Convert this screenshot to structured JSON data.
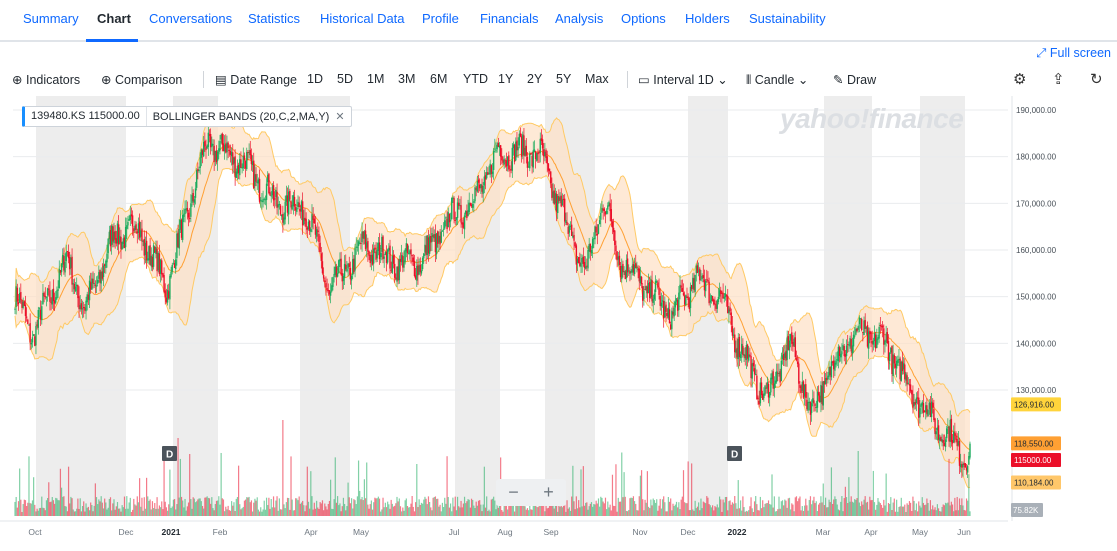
{
  "nav": {
    "tabs": [
      "Summary",
      "Chart",
      "Conversations",
      "Statistics",
      "Historical Data",
      "Profile",
      "Financials",
      "Analysis",
      "Options",
      "Holders",
      "Sustainability"
    ],
    "active": "Chart"
  },
  "fullscreen_label": "Full screen",
  "toolbar": {
    "indicators": "Indicators",
    "comparison": "Comparison",
    "date_range": "Date Range",
    "ranges": [
      "1D",
      "5D",
      "1M",
      "3M",
      "6M",
      "YTD",
      "1Y",
      "2Y",
      "5Y",
      "Max"
    ],
    "interval_label": "Interval",
    "interval_value": "1D",
    "candle_label": "Candle",
    "draw_label": "Draw"
  },
  "chips": {
    "symbol": "139480.KS",
    "price": "115000.00",
    "indicator": "BOLLINGER BANDS (20,C,2,MA,Y)"
  },
  "watermark": "yahoo!finance",
  "chart_data": {
    "type": "candlestick",
    "indicator": "Bollinger Bands",
    "y_axis": {
      "range": [
        103000,
        193000
      ],
      "ticks": [
        "190,000.00",
        "180,000.00",
        "170,000.00",
        "160,000.00",
        "150,000.00",
        "140,000.00",
        "130,000.00"
      ],
      "tick_values": [
        190000,
        180000,
        170000,
        160000,
        150000,
        140000,
        130000
      ]
    },
    "x_axis": {
      "labels": [
        "Oct",
        "Dec",
        "2021",
        "Feb",
        "Apr",
        "May",
        "Jul",
        "Aug",
        "Sep",
        "Nov",
        "Dec",
        "2022",
        "Mar",
        "Apr",
        "May",
        "Jun"
      ],
      "bold": [
        "2021",
        "2022"
      ]
    },
    "price_anchors": [
      [
        0,
        150000
      ],
      [
        15,
        142000
      ],
      [
        45,
        158000
      ],
      [
        60,
        147000
      ],
      [
        85,
        163000
      ],
      [
        105,
        165000
      ],
      [
        130,
        152000
      ],
      [
        165,
        183000
      ],
      [
        195,
        179000
      ],
      [
        225,
        170000
      ],
      [
        250,
        169000
      ],
      [
        270,
        151000
      ],
      [
        300,
        161000
      ],
      [
        330,
        157000
      ],
      [
        350,
        158000
      ],
      [
        375,
        167000
      ],
      [
        395,
        171000
      ],
      [
        415,
        181000
      ],
      [
        450,
        181000
      ],
      [
        470,
        168000
      ],
      [
        490,
        155000
      ],
      [
        505,
        171000
      ],
      [
        520,
        158000
      ],
      [
        545,
        151000
      ],
      [
        565,
        146000
      ],
      [
        585,
        154000
      ],
      [
        605,
        150000
      ],
      [
        625,
        138000
      ],
      [
        645,
        128000
      ],
      [
        665,
        140000
      ],
      [
        685,
        125000
      ],
      [
        700,
        135000
      ],
      [
        720,
        142000
      ],
      [
        745,
        141000
      ],
      [
        770,
        130000
      ],
      [
        790,
        123000
      ],
      [
        820,
        115000
      ]
    ],
    "badges": [
      {
        "label": "126,916.00",
        "value": 126916,
        "color": "#ffd43b"
      },
      {
        "label": "118,550.00",
        "value": 118550,
        "color": "#ffa033"
      },
      {
        "label": "115000.00",
        "value": 115000,
        "color": "#eb0f29"
      },
      {
        "label": "110,184.00",
        "value": 110184,
        "color": "#ffc76a"
      }
    ],
    "volume_label": "75.82K",
    "dividend_markers": [
      "D",
      "D"
    ],
    "colors": {
      "up": "#1aaa5c",
      "down": "#eb0f29",
      "band_fill": "#fde0c4",
      "band_line": "#ffca65",
      "mid_line": "#ffa033",
      "shade": "#ededed"
    }
  }
}
